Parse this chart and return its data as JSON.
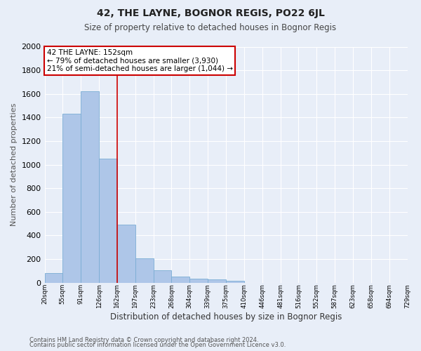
{
  "title": "42, THE LAYNE, BOGNOR REGIS, PO22 6JL",
  "subtitle": "Size of property relative to detached houses in Bognor Regis",
  "xlabel": "Distribution of detached houses by size in Bognor Regis",
  "ylabel": "Number of detached properties",
  "bar_values": [
    80,
    1430,
    1620,
    1050,
    490,
    205,
    103,
    50,
    35,
    25,
    18,
    0,
    0,
    0,
    0,
    0,
    0,
    0,
    0,
    0
  ],
  "x_labels": [
    "20sqm",
    "55sqm",
    "91sqm",
    "126sqm",
    "162sqm",
    "197sqm",
    "233sqm",
    "268sqm",
    "304sqm",
    "339sqm",
    "375sqm",
    "410sqm",
    "446sqm",
    "481sqm",
    "516sqm",
    "552sqm",
    "587sqm",
    "623sqm",
    "658sqm",
    "694sqm",
    "729sqm"
  ],
  "n_bars": 20,
  "bar_color": "#aec6e8",
  "bar_edge_color": "#7aadd4",
  "background_color": "#e8eef8",
  "grid_color": "#ffffff",
  "ylim": [
    0,
    2000
  ],
  "yticks": [
    0,
    200,
    400,
    600,
    800,
    1000,
    1200,
    1400,
    1600,
    1800,
    2000
  ],
  "red_line_x": 4,
  "annotation_line1": "42 THE LAYNE: 152sqm",
  "annotation_line2": "← 79% of detached houses are smaller (3,930)",
  "annotation_line3": "21% of semi-detached houses are larger (1,044) →",
  "annotation_box_color": "#ffffff",
  "annotation_box_edge_color": "#cc0000",
  "red_line_color": "#cc0000",
  "footnote1": "Contains HM Land Registry data © Crown copyright and database right 2024.",
  "footnote2": "Contains public sector information licensed under the Open Government Licence v3.0."
}
